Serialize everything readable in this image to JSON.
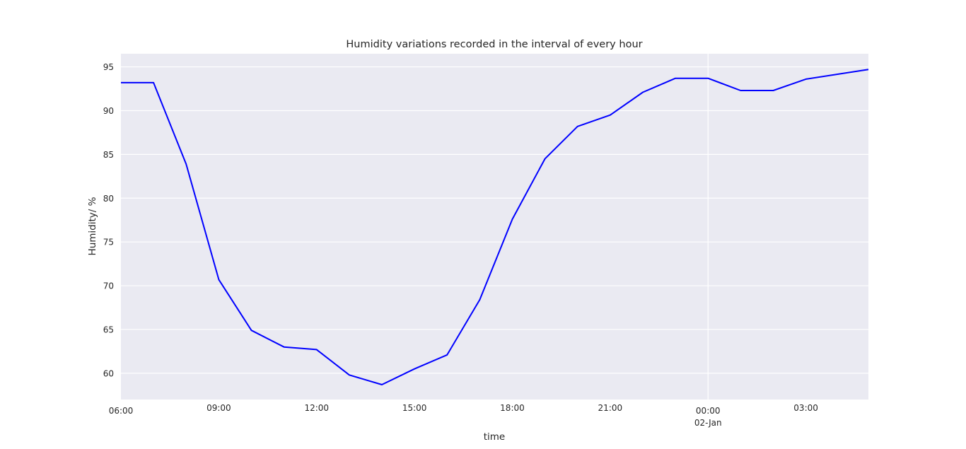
{
  "chart_data": {
    "type": "line",
    "title": "Humidity variations recorded in the interval of every hour",
    "xlabel": "time",
    "ylabel": "Humidity/ %",
    "grid": true,
    "background": "#eaeaf2",
    "line_color": "#0000ff",
    "ylim": [
      57,
      96.5
    ],
    "yticks": [
      60,
      65,
      70,
      75,
      80,
      85,
      90,
      95
    ],
    "xlim_hours": [
      "06:00",
      "04:55 (02-Jan)"
    ],
    "xticks": [
      {
        "time": "06:00",
        "label": "06:00",
        "sub": "",
        "gridline": false
      },
      {
        "time": "09:00",
        "label": "09:00",
        "sub": "",
        "gridline": false
      },
      {
        "time": "12:00",
        "label": "12:00",
        "sub": "",
        "gridline": false
      },
      {
        "time": "15:00",
        "label": "15:00",
        "sub": "",
        "gridline": false
      },
      {
        "time": "18:00",
        "label": "18:00",
        "sub": "",
        "gridline": false
      },
      {
        "time": "21:00",
        "label": "21:00",
        "sub": "",
        "gridline": false
      },
      {
        "time": "00:00",
        "label": "00:00",
        "sub": "02-Jan",
        "gridline": true
      },
      {
        "time": "03:00",
        "label": "03:00",
        "sub": "",
        "gridline": false
      }
    ],
    "series": [
      {
        "x": [
          "06:00",
          "07:00",
          "08:00",
          "09:00",
          "10:00",
          "11:00",
          "12:00",
          "13:00",
          "14:00",
          "15:00",
          "16:00",
          "17:00",
          "18:00",
          "19:00",
          "20:00",
          "21:00",
          "22:00",
          "23:00",
          "00:00",
          "01:00",
          "02:00",
          "03:00",
          "04:55"
        ],
        "values": [
          93.2,
          93.2,
          83.9,
          70.7,
          64.9,
          63.0,
          62.7,
          59.8,
          58.7,
          60.5,
          62.1,
          68.4,
          77.6,
          84.5,
          88.2,
          89.5,
          92.1,
          93.7,
          93.7,
          92.3,
          92.3,
          93.6,
          94.7
        ]
      }
    ]
  }
}
